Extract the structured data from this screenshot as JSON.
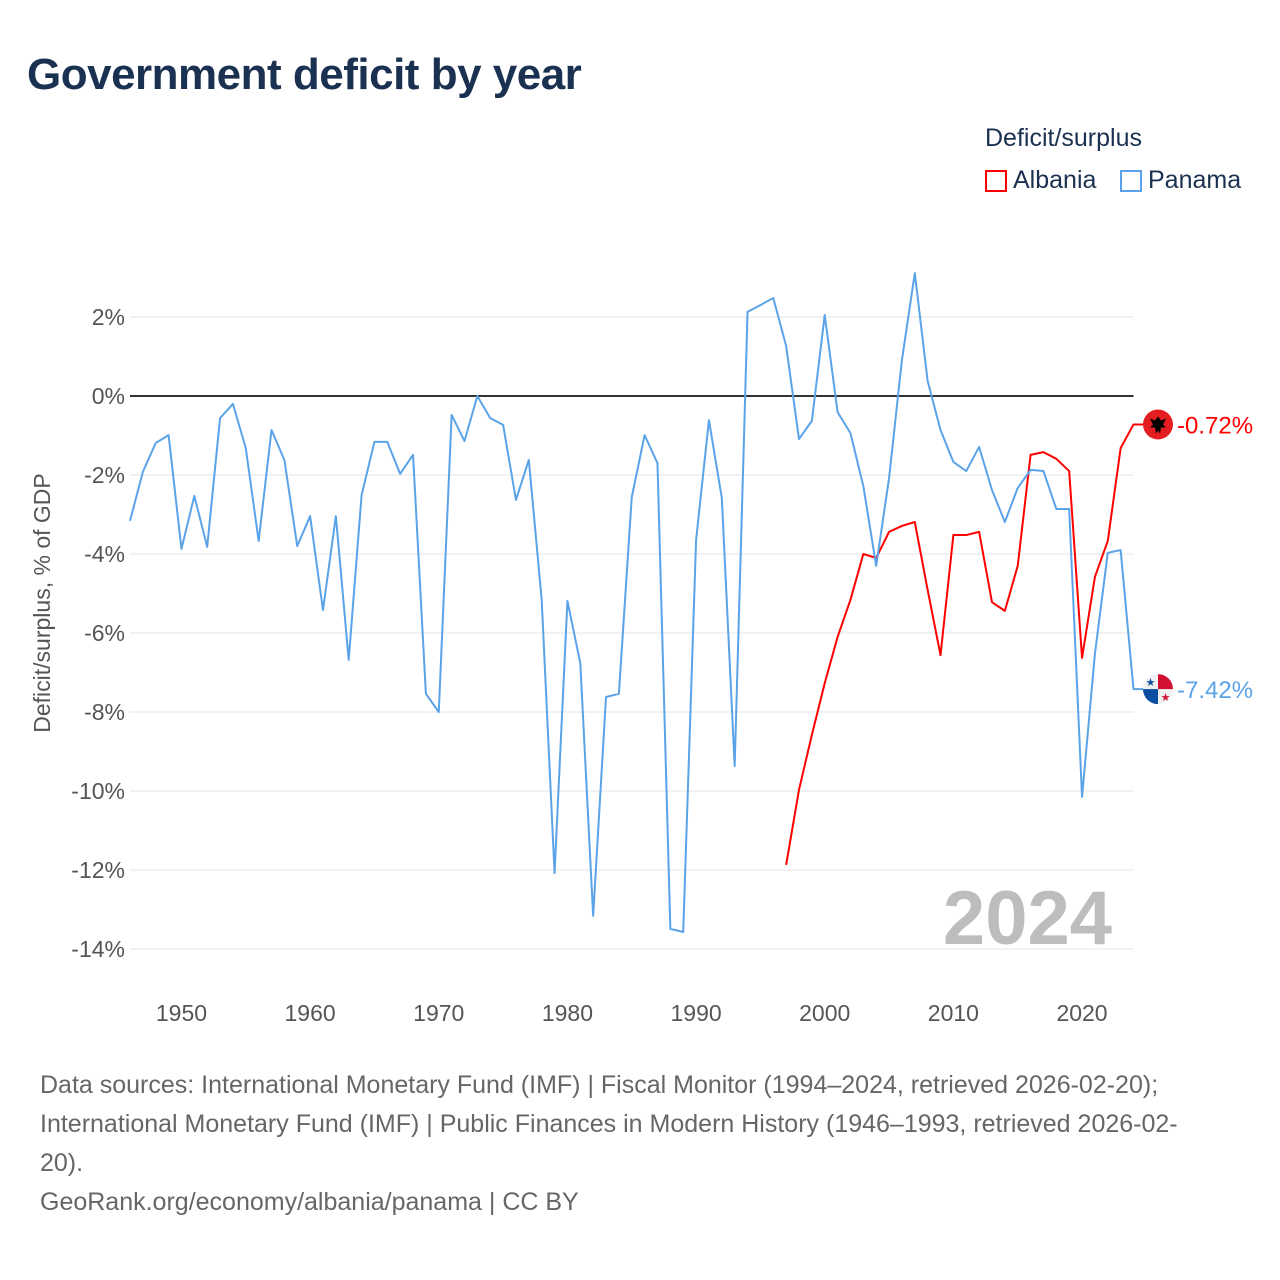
{
  "chart_data": {
    "type": "line",
    "title": "Government deficit by year",
    "xlabel": "",
    "ylabel": "Deficit/surplus, % of GDP",
    "xlim": [
      1946,
      2024
    ],
    "ylim": [
      -15,
      3.5
    ],
    "xticks": [
      1950,
      1960,
      1970,
      1980,
      1990,
      2000,
      2010,
      2020
    ],
    "yticks": [
      2,
      0,
      -2,
      -4,
      -6,
      -8,
      -10,
      -12,
      -14
    ],
    "ytick_labels": [
      "2%",
      "0%",
      "-2%",
      "-4%",
      "-6%",
      "-8%",
      "-10%",
      "-12%",
      "-14%"
    ],
    "xtick_labels": [
      "1950",
      "1960",
      "1970",
      "1980",
      "1990",
      "2000",
      "2010",
      "2020"
    ],
    "grid": true,
    "legend_title": "Deficit/surplus",
    "legend_position": "top-right",
    "year_watermark": "2024",
    "series": [
      {
        "name": "Albania",
        "color": "#ff0000",
        "end_label": "-0.72%",
        "flag_icon": "albania-flag",
        "start_year": 1997,
        "values": [
          -11.87,
          -9.97,
          -8.58,
          -7.27,
          -6.1,
          -5.16,
          -4.0,
          -4.1,
          -3.44,
          -3.29,
          -3.19,
          -4.91,
          -6.56,
          -3.52,
          -3.52,
          -3.44,
          -5.22,
          -5.44,
          -4.3,
          -1.49,
          -1.42,
          -1.59,
          -1.9,
          -6.63,
          -4.58,
          -3.67,
          -1.32,
          -0.72
        ]
      },
      {
        "name": "Panama",
        "color": "#5ba3e8",
        "end_label": "-7.42%",
        "flag_icon": "panama-flag",
        "start_year": 1946,
        "values": [
          -3.16,
          -1.92,
          -1.19,
          -0.99,
          -3.87,
          -2.53,
          -3.82,
          -0.56,
          -0.2,
          -1.32,
          -3.67,
          -0.86,
          -1.62,
          -3.8,
          -3.04,
          -5.42,
          -3.04,
          -6.68,
          -2.51,
          -1.16,
          -1.16,
          -1.97,
          -1.49,
          -7.54,
          -8.0,
          -0.48,
          -1.14,
          0.0,
          -0.56,
          -0.73,
          -2.63,
          -1.62,
          -5.16,
          -12.08,
          -5.19,
          -6.76,
          -13.16,
          -7.62,
          -7.54,
          -2.56,
          -0.99,
          -1.7,
          -13.49,
          -13.57,
          -3.65,
          -0.61,
          -2.58,
          -9.37,
          2.13,
          2.3,
          2.48,
          1.27,
          -1.09,
          -0.63,
          2.05,
          -0.41,
          -0.94,
          -2.28,
          -4.3,
          -2.08,
          0.91,
          3.11,
          0.38,
          -0.86,
          -1.67,
          -1.9,
          -1.29,
          -2.38,
          -3.19,
          -2.33,
          -1.87,
          -1.9,
          -2.86,
          -2.86,
          -10.15,
          -6.53,
          -3.97,
          -3.9,
          -7.42
        ]
      }
    ]
  },
  "footer": {
    "line1": "Data sources: International Monetary Fund (IMF) | Fiscal Monitor (1994–2024, retrieved 2026-02-20);",
    "line2": "International Monetary Fund (IMF) | Public Finances in Modern History (1946–1993, retrieved 2026-02-",
    "line3": "20).",
    "line4": "GeoRank.org/economy/albania/panama | CC BY"
  }
}
